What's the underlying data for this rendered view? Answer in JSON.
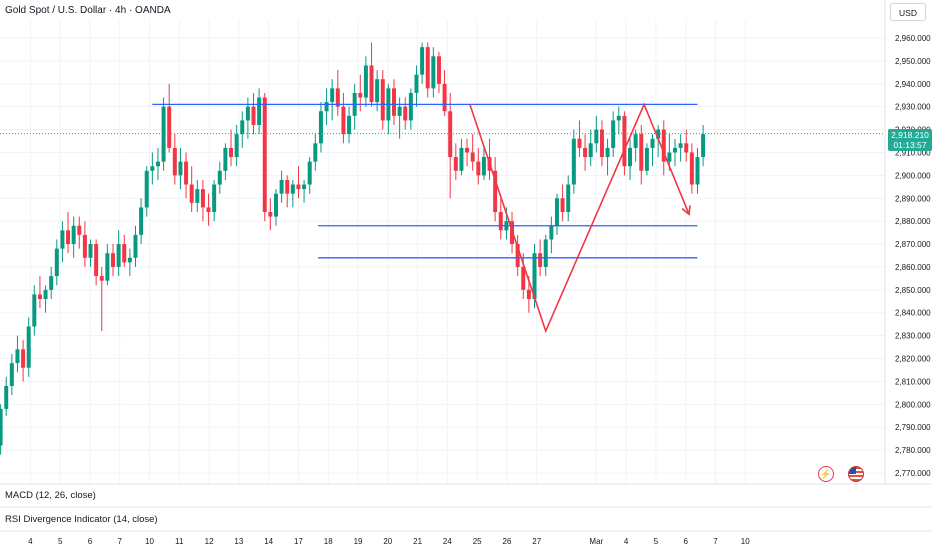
{
  "header": {
    "symbol_title": "Gold Spot / U.S. Dollar · 4h · OANDA",
    "currency": "USD"
  },
  "current_price": {
    "price": "2,918.210",
    "countdown": "01:13:57",
    "value": 2918.21,
    "color": "#22ab94"
  },
  "indicators": {
    "macd": "MACD (12, 26, close)",
    "rsi": "RSI Divergence Indicator (14, close)"
  },
  "icons": {
    "alert": "lightning-alert-icon",
    "flag": "us-flag-icon"
  },
  "colors": {
    "up": "#089981",
    "down": "#f23645",
    "drawing_blue": "#2962ff",
    "drawing_red": "#f23645"
  },
  "chart_data": {
    "type": "candlestick",
    "symbol": "XAUUSD",
    "interval": "4h",
    "ylim": [
      2765,
      2970
    ],
    "y_ticks": [
      2770,
      2780,
      2790,
      2800,
      2810,
      2820,
      2830,
      2840,
      2850,
      2860,
      2870,
      2880,
      2890,
      2900,
      2910,
      2920,
      2930,
      2940,
      2950,
      2960
    ],
    "y_tick_labels": [
      "2,770.000",
      "2,780.000",
      "2,790.000",
      "2,800.000",
      "2,810.000",
      "2,820.000",
      "2,830.000",
      "2,840.000",
      "2,850.000",
      "2,860.000",
      "2,870.000",
      "2,880.000",
      "2,890.000",
      "2,900.000",
      "2,910.000",
      "2,920.000",
      "2,930.000",
      "2,940.000",
      "2,950.000",
      "2,960.000"
    ],
    "x_ticks": [
      "4",
      "5",
      "6",
      "7",
      "10",
      "11",
      "12",
      "13",
      "14",
      "17",
      "18",
      "19",
      "20",
      "21",
      "24",
      "25",
      "26",
      "27",
      "Mar",
      "4",
      "5",
      "6",
      "7",
      "10"
    ],
    "x_tick_index": [
      5.3,
      10.6,
      15.9,
      21.2,
      26.5,
      31.8,
      37.1,
      42.4,
      47.7,
      53.0,
      58.3,
      63.6,
      68.9,
      74.2,
      79.5,
      84.8,
      90.1,
      95.4,
      106.0,
      111.3,
      116.6,
      121.9,
      127.2,
      132.5
    ],
    "candles": [
      [
        2782,
        2800,
        2778,
        2798
      ],
      [
        2798,
        2812,
        2795,
        2808
      ],
      [
        2808,
        2822,
        2804,
        2818
      ],
      [
        2818,
        2830,
        2814,
        2824
      ],
      [
        2824,
        2828,
        2810,
        2816
      ],
      [
        2816,
        2838,
        2812,
        2834
      ],
      [
        2834,
        2852,
        2830,
        2848
      ],
      [
        2848,
        2856,
        2842,
        2846
      ],
      [
        2846,
        2852,
        2840,
        2850
      ],
      [
        2850,
        2860,
        2846,
        2856
      ],
      [
        2856,
        2872,
        2852,
        2868
      ],
      [
        2868,
        2880,
        2862,
        2876
      ],
      [
        2876,
        2884,
        2866,
        2870
      ],
      [
        2870,
        2882,
        2864,
        2878
      ],
      [
        2878,
        2882,
        2868,
        2874
      ],
      [
        2874,
        2880,
        2860,
        2864
      ],
      [
        2864,
        2872,
        2860,
        2870
      ],
      [
        2870,
        2872,
        2852,
        2856
      ],
      [
        2856,
        2860,
        2832,
        2854
      ],
      [
        2854,
        2870,
        2852,
        2866
      ],
      [
        2866,
        2870,
        2856,
        2860
      ],
      [
        2860,
        2876,
        2856,
        2870
      ],
      [
        2870,
        2874,
        2860,
        2862
      ],
      [
        2862,
        2868,
        2856,
        2864
      ],
      [
        2864,
        2878,
        2860,
        2874
      ],
      [
        2874,
        2890,
        2870,
        2886
      ],
      [
        2886,
        2904,
        2882,
        2902
      ],
      [
        2902,
        2910,
        2896,
        2904
      ],
      [
        2904,
        2912,
        2898,
        2906
      ],
      [
        2906,
        2934,
        2902,
        2930
      ],
      [
        2930,
        2940,
        2910,
        2912
      ],
      [
        2912,
        2918,
        2896,
        2900
      ],
      [
        2900,
        2912,
        2894,
        2906
      ],
      [
        2906,
        2910,
        2890,
        2896
      ],
      [
        2896,
        2904,
        2884,
        2888
      ],
      [
        2888,
        2898,
        2884,
        2894
      ],
      [
        2894,
        2898,
        2880,
        2886
      ],
      [
        2886,
        2892,
        2878,
        2884
      ],
      [
        2884,
        2898,
        2880,
        2896
      ],
      [
        2896,
        2906,
        2892,
        2902
      ],
      [
        2902,
        2914,
        2898,
        2912
      ],
      [
        2912,
        2920,
        2904,
        2908
      ],
      [
        2908,
        2922,
        2904,
        2918
      ],
      [
        2918,
        2928,
        2912,
        2924
      ],
      [
        2924,
        2934,
        2916,
        2930
      ],
      [
        2930,
        2936,
        2918,
        2922
      ],
      [
        2922,
        2938,
        2918,
        2934
      ],
      [
        2934,
        2936,
        2880,
        2884
      ],
      [
        2884,
        2890,
        2876,
        2882
      ],
      [
        2882,
        2894,
        2878,
        2892
      ],
      [
        2892,
        2902,
        2888,
        2898
      ],
      [
        2898,
        2900,
        2886,
        2892
      ],
      [
        2892,
        2898,
        2886,
        2896
      ],
      [
        2896,
        2904,
        2890,
        2894
      ],
      [
        2894,
        2898,
        2888,
        2896
      ],
      [
        2896,
        2908,
        2892,
        2906
      ],
      [
        2906,
        2918,
        2902,
        2914
      ],
      [
        2914,
        2932,
        2910,
        2928
      ],
      [
        2928,
        2938,
        2922,
        2932
      ],
      [
        2932,
        2942,
        2924,
        2938
      ],
      [
        2938,
        2946,
        2926,
        2930
      ],
      [
        2930,
        2936,
        2914,
        2918
      ],
      [
        2918,
        2930,
        2914,
        2926
      ],
      [
        2926,
        2940,
        2920,
        2936
      ],
      [
        2936,
        2944,
        2928,
        2934
      ],
      [
        2934,
        2952,
        2930,
        2948
      ],
      [
        2948,
        2958,
        2930,
        2932
      ],
      [
        2932,
        2946,
        2928,
        2942
      ],
      [
        2942,
        2946,
        2920,
        2924
      ],
      [
        2924,
        2940,
        2918,
        2938
      ],
      [
        2938,
        2942,
        2922,
        2926
      ],
      [
        2926,
        2934,
        2916,
        2930
      ],
      [
        2930,
        2934,
        2920,
        2924
      ],
      [
        2924,
        2938,
        2920,
        2936
      ],
      [
        2936,
        2948,
        2930,
        2944
      ],
      [
        2944,
        2958,
        2940,
        2956
      ],
      [
        2956,
        2958,
        2934,
        2938
      ],
      [
        2938,
        2956,
        2934,
        2952
      ],
      [
        2952,
        2954,
        2936,
        2940
      ],
      [
        2940,
        2946,
        2926,
        2928
      ],
      [
        2928,
        2936,
        2890,
        2908
      ],
      [
        2908,
        2914,
        2898,
        2902
      ],
      [
        2902,
        2916,
        2900,
        2912
      ],
      [
        2912,
        2916,
        2904,
        2910
      ],
      [
        2910,
        2918,
        2902,
        2906
      ],
      [
        2906,
        2912,
        2896,
        2900
      ],
      [
        2900,
        2912,
        2898,
        2908
      ],
      [
        2908,
        2916,
        2898,
        2902
      ],
      [
        2902,
        2908,
        2880,
        2884
      ],
      [
        2884,
        2890,
        2872,
        2876
      ],
      [
        2876,
        2886,
        2872,
        2880
      ],
      [
        2880,
        2884,
        2866,
        2870
      ],
      [
        2870,
        2874,
        2856,
        2860
      ],
      [
        2860,
        2866,
        2846,
        2850
      ],
      [
        2850,
        2856,
        2840,
        2846
      ],
      [
        2846,
        2870,
        2842,
        2866
      ],
      [
        2866,
        2872,
        2856,
        2860
      ],
      [
        2860,
        2874,
        2856,
        2872
      ],
      [
        2872,
        2882,
        2866,
        2878
      ],
      [
        2878,
        2892,
        2874,
        2890
      ],
      [
        2890,
        2896,
        2880,
        2884
      ],
      [
        2884,
        2900,
        2880,
        2896
      ],
      [
        2896,
        2920,
        2892,
        2916
      ],
      [
        2916,
        2924,
        2908,
        2912
      ],
      [
        2912,
        2918,
        2902,
        2908
      ],
      [
        2908,
        2920,
        2904,
        2914
      ],
      [
        2914,
        2926,
        2910,
        2920
      ],
      [
        2920,
        2924,
        2904,
        2908
      ],
      [
        2908,
        2916,
        2900,
        2912
      ],
      [
        2912,
        2928,
        2908,
        2924
      ],
      [
        2924,
        2930,
        2918,
        2926
      ],
      [
        2926,
        2928,
        2900,
        2904
      ],
      [
        2904,
        2916,
        2898,
        2912
      ],
      [
        2912,
        2920,
        2906,
        2918
      ],
      [
        2918,
        2922,
        2896,
        2902
      ],
      [
        2902,
        2914,
        2900,
        2912
      ],
      [
        2912,
        2918,
        2904,
        2916
      ],
      [
        2916,
        2922,
        2908,
        2920
      ],
      [
        2920,
        2924,
        2900,
        2906
      ],
      [
        2906,
        2918,
        2902,
        2910
      ],
      [
        2910,
        2916,
        2904,
        2912
      ],
      [
        2912,
        2918,
        2906,
        2914
      ],
      [
        2914,
        2920,
        2906,
        2910
      ],
      [
        2910,
        2914,
        2892,
        2896
      ],
      [
        2896,
        2912,
        2892,
        2908
      ],
      [
        2908,
        2922,
        2904,
        2918
      ]
    ],
    "horizontal_lines": [
      {
        "value": 2931,
        "x_start": 27.0,
        "x_end": 124.0,
        "color": "#2962ff"
      },
      {
        "value": 2878,
        "x_start": 56.5,
        "x_end": 124.0,
        "color": "#2962ff"
      },
      {
        "value": 2864,
        "x_start": 56.5,
        "x_end": 124.0,
        "color": "#2962ff"
      }
    ],
    "pattern_lines": [
      {
        "points": [
          [
            83.5,
            2931
          ],
          [
            97.0,
            2832
          ],
          [
            114.5,
            2931
          ],
          [
            122.5,
            2883
          ]
        ],
        "color": "#f23645",
        "arrow": true
      }
    ]
  }
}
